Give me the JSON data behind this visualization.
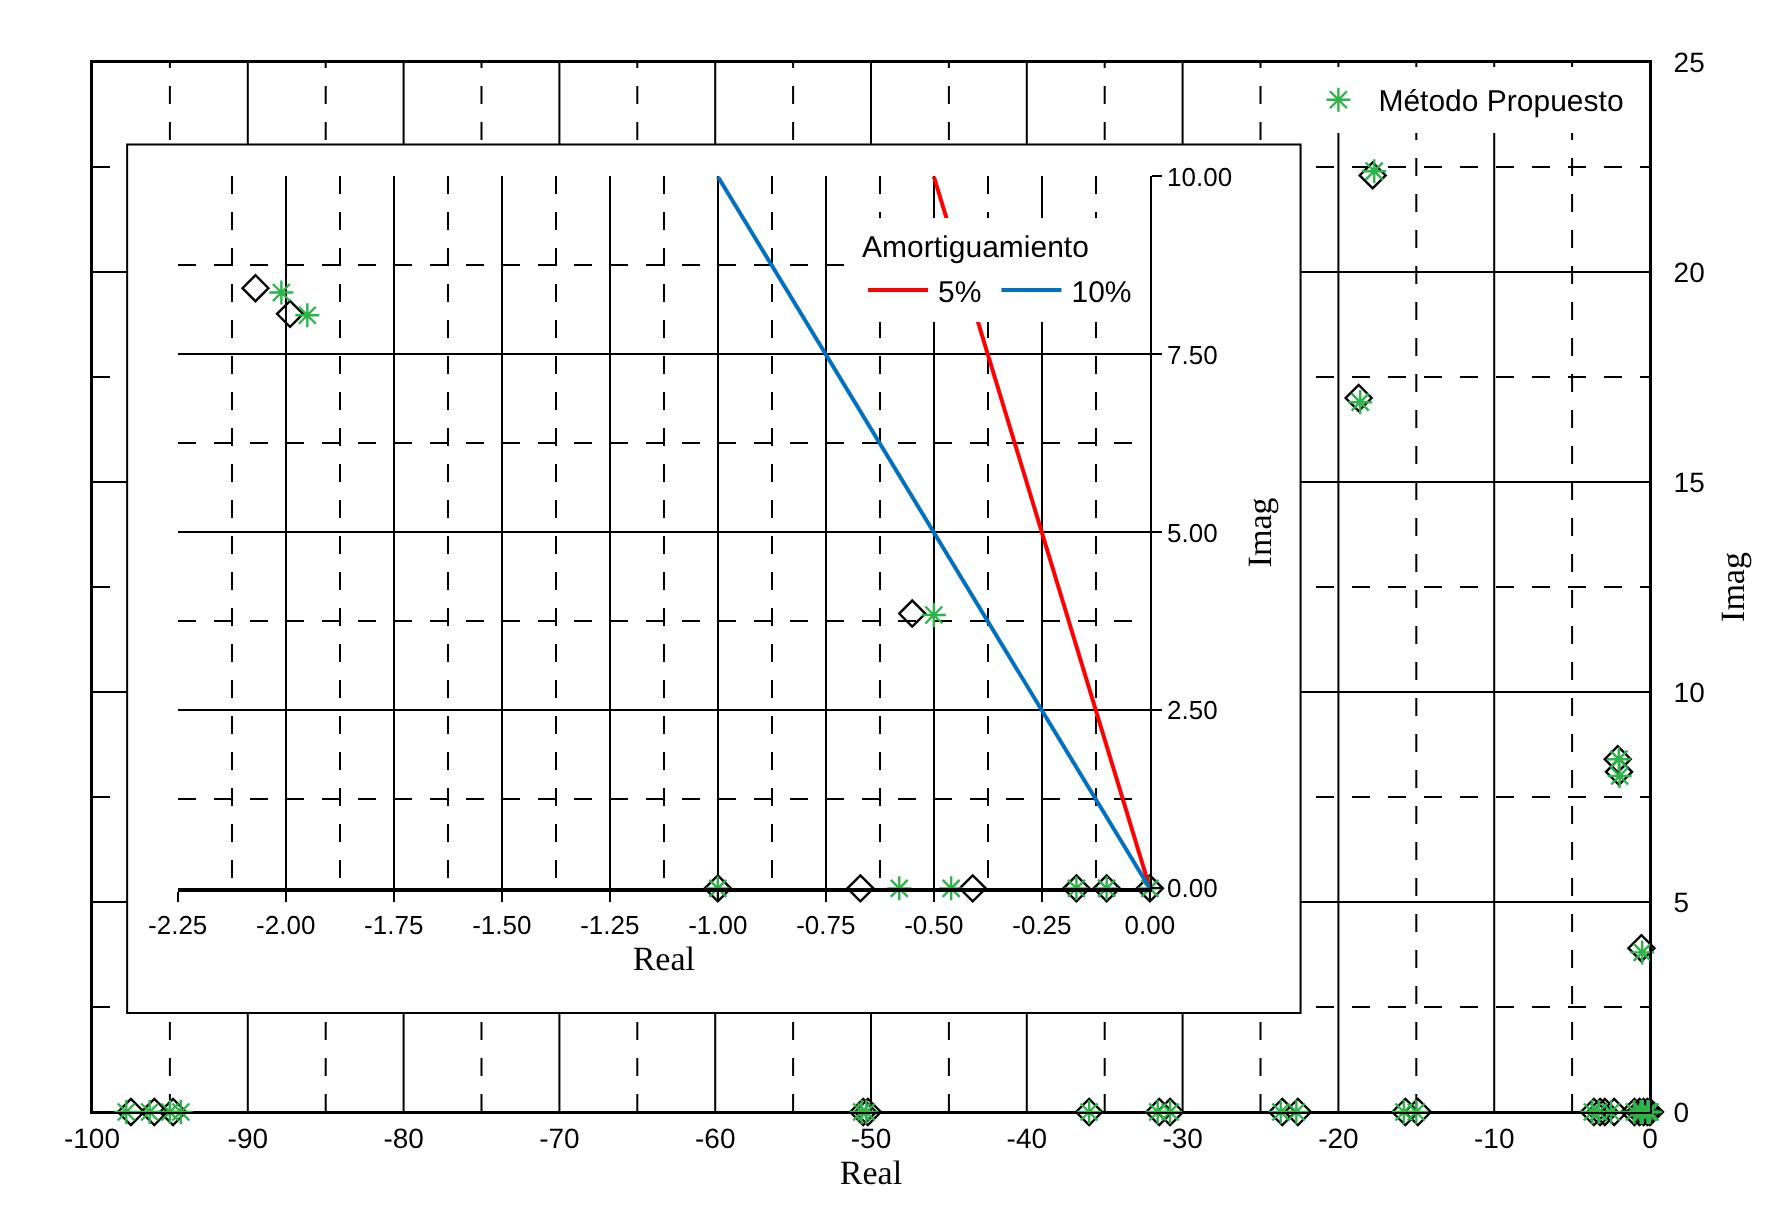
{
  "chart_data": [
    {
      "type": "scatter",
      "xlabel": "Real",
      "ylabel": "Imag",
      "xlim": [
        -100,
        0
      ],
      "ylim": [
        0,
        25
      ],
      "xticks": [
        -100,
        -90,
        -80,
        -70,
        -60,
        -50,
        -40,
        -30,
        -20,
        -10,
        0
      ],
      "yticks": [
        0,
        5,
        10,
        15,
        20,
        25
      ],
      "grid": true,
      "legend": "top right",
      "series": [
        {
          "color": "#000000",
          "marker": "diamond",
          "x": [
            -97.5,
            -96,
            -94.8,
            -50.5,
            -50.2,
            -36,
            -31.5,
            -30.8,
            -23.6,
            -22.6,
            -15.7,
            -14.9,
            -3.6,
            -3.2,
            -2.9,
            -2.3,
            -1,
            -0.67,
            -0.41,
            -0.17,
            0,
            -17.8,
            -18.7,
            -2.07,
            -1.99,
            -0.55
          ],
          "values": [
            0,
            0,
            0,
            0,
            0,
            0,
            0,
            0,
            0,
            0,
            0,
            0,
            0,
            0,
            0,
            0,
            0,
            0,
            0,
            0,
            0,
            22.3,
            17.0,
            8.4,
            8.1,
            3.9
          ]
        },
        {
          "name": "Método Propuesto",
          "color": "#2db34a",
          "marker": "cross",
          "x": [
            -97.8,
            -96.3,
            -95,
            -94.3,
            -50.6,
            -50.3,
            -36,
            -31.6,
            -30.8,
            -23.7,
            -22.7,
            -15.8,
            -15,
            -3.7,
            -3.3,
            -2.5,
            -1,
            -0.58,
            -0.46,
            -0.17,
            -0.1,
            0,
            -17.7,
            -18.6,
            -2.0,
            -1.95,
            -0.5
          ],
          "values": [
            0,
            0,
            0,
            0,
            0,
            0,
            0,
            0,
            0,
            0,
            0,
            0,
            0,
            0,
            0,
            0,
            0,
            0,
            0,
            0,
            0,
            0,
            22.4,
            16.9,
            8.4,
            8.0,
            3.8
          ]
        }
      ]
    },
    {
      "type": "scatter",
      "xlabel": "Real",
      "ylabel": "Imag",
      "legend_title": "Amortiguamiento",
      "xlim": [
        -2.25,
        0
      ],
      "ylim": [
        0,
        10
      ],
      "xticks": [
        {
          "value": -2.25,
          "label": "-2.25"
        },
        {
          "value": -2.0,
          "label": "-2.00"
        },
        {
          "value": -1.75,
          "label": "-1.75"
        },
        {
          "value": -1.5,
          "label": "-1.50"
        },
        {
          "value": -1.25,
          "label": "-1.25"
        },
        {
          "value": -1.0,
          "label": "-1.00"
        },
        {
          "value": -0.75,
          "label": "-0.75"
        },
        {
          "value": -0.5,
          "label": "-0.50"
        },
        {
          "value": -0.25,
          "label": "-0.25"
        },
        {
          "value": 0,
          "label": "0.00"
        }
      ],
      "yticks": [
        {
          "value": 0,
          "label": "0.00"
        },
        {
          "value": 2.5,
          "label": "2.50"
        },
        {
          "value": 5,
          "label": "5.00"
        },
        {
          "value": 7.5,
          "label": "7.50"
        },
        {
          "value": 10,
          "label": "10.00"
        }
      ],
      "grid": true,
      "legend": "top right",
      "series": [
        {
          "color": "#000000",
          "marker": "diamond",
          "x": [
            -2.07,
            -1.99,
            -0.55,
            -1.0,
            -0.67,
            -0.41,
            -0.17,
            -0.1,
            0
          ],
          "values": [
            8.43,
            8.07,
            3.86,
            0,
            0,
            0,
            0,
            0,
            0
          ]
        },
        {
          "color": "#2db34a",
          "marker": "cross",
          "x": [
            -2.01,
            -1.95,
            -0.5,
            -1.0,
            -0.58,
            -0.46,
            -0.17,
            -0.1,
            0
          ],
          "values": [
            8.37,
            8.05,
            3.84,
            0,
            0,
            0,
            0,
            0,
            0
          ]
        },
        {
          "type": "line",
          "name": "5%",
          "color": "#ff0000",
          "x": [
            0,
            -0.5
          ],
          "values": [
            0,
            10
          ]
        },
        {
          "type": "line",
          "name": "10%",
          "color": "#0070c0",
          "x": [
            0,
            -1.0
          ],
          "values": [
            0,
            10
          ]
        }
      ]
    }
  ]
}
